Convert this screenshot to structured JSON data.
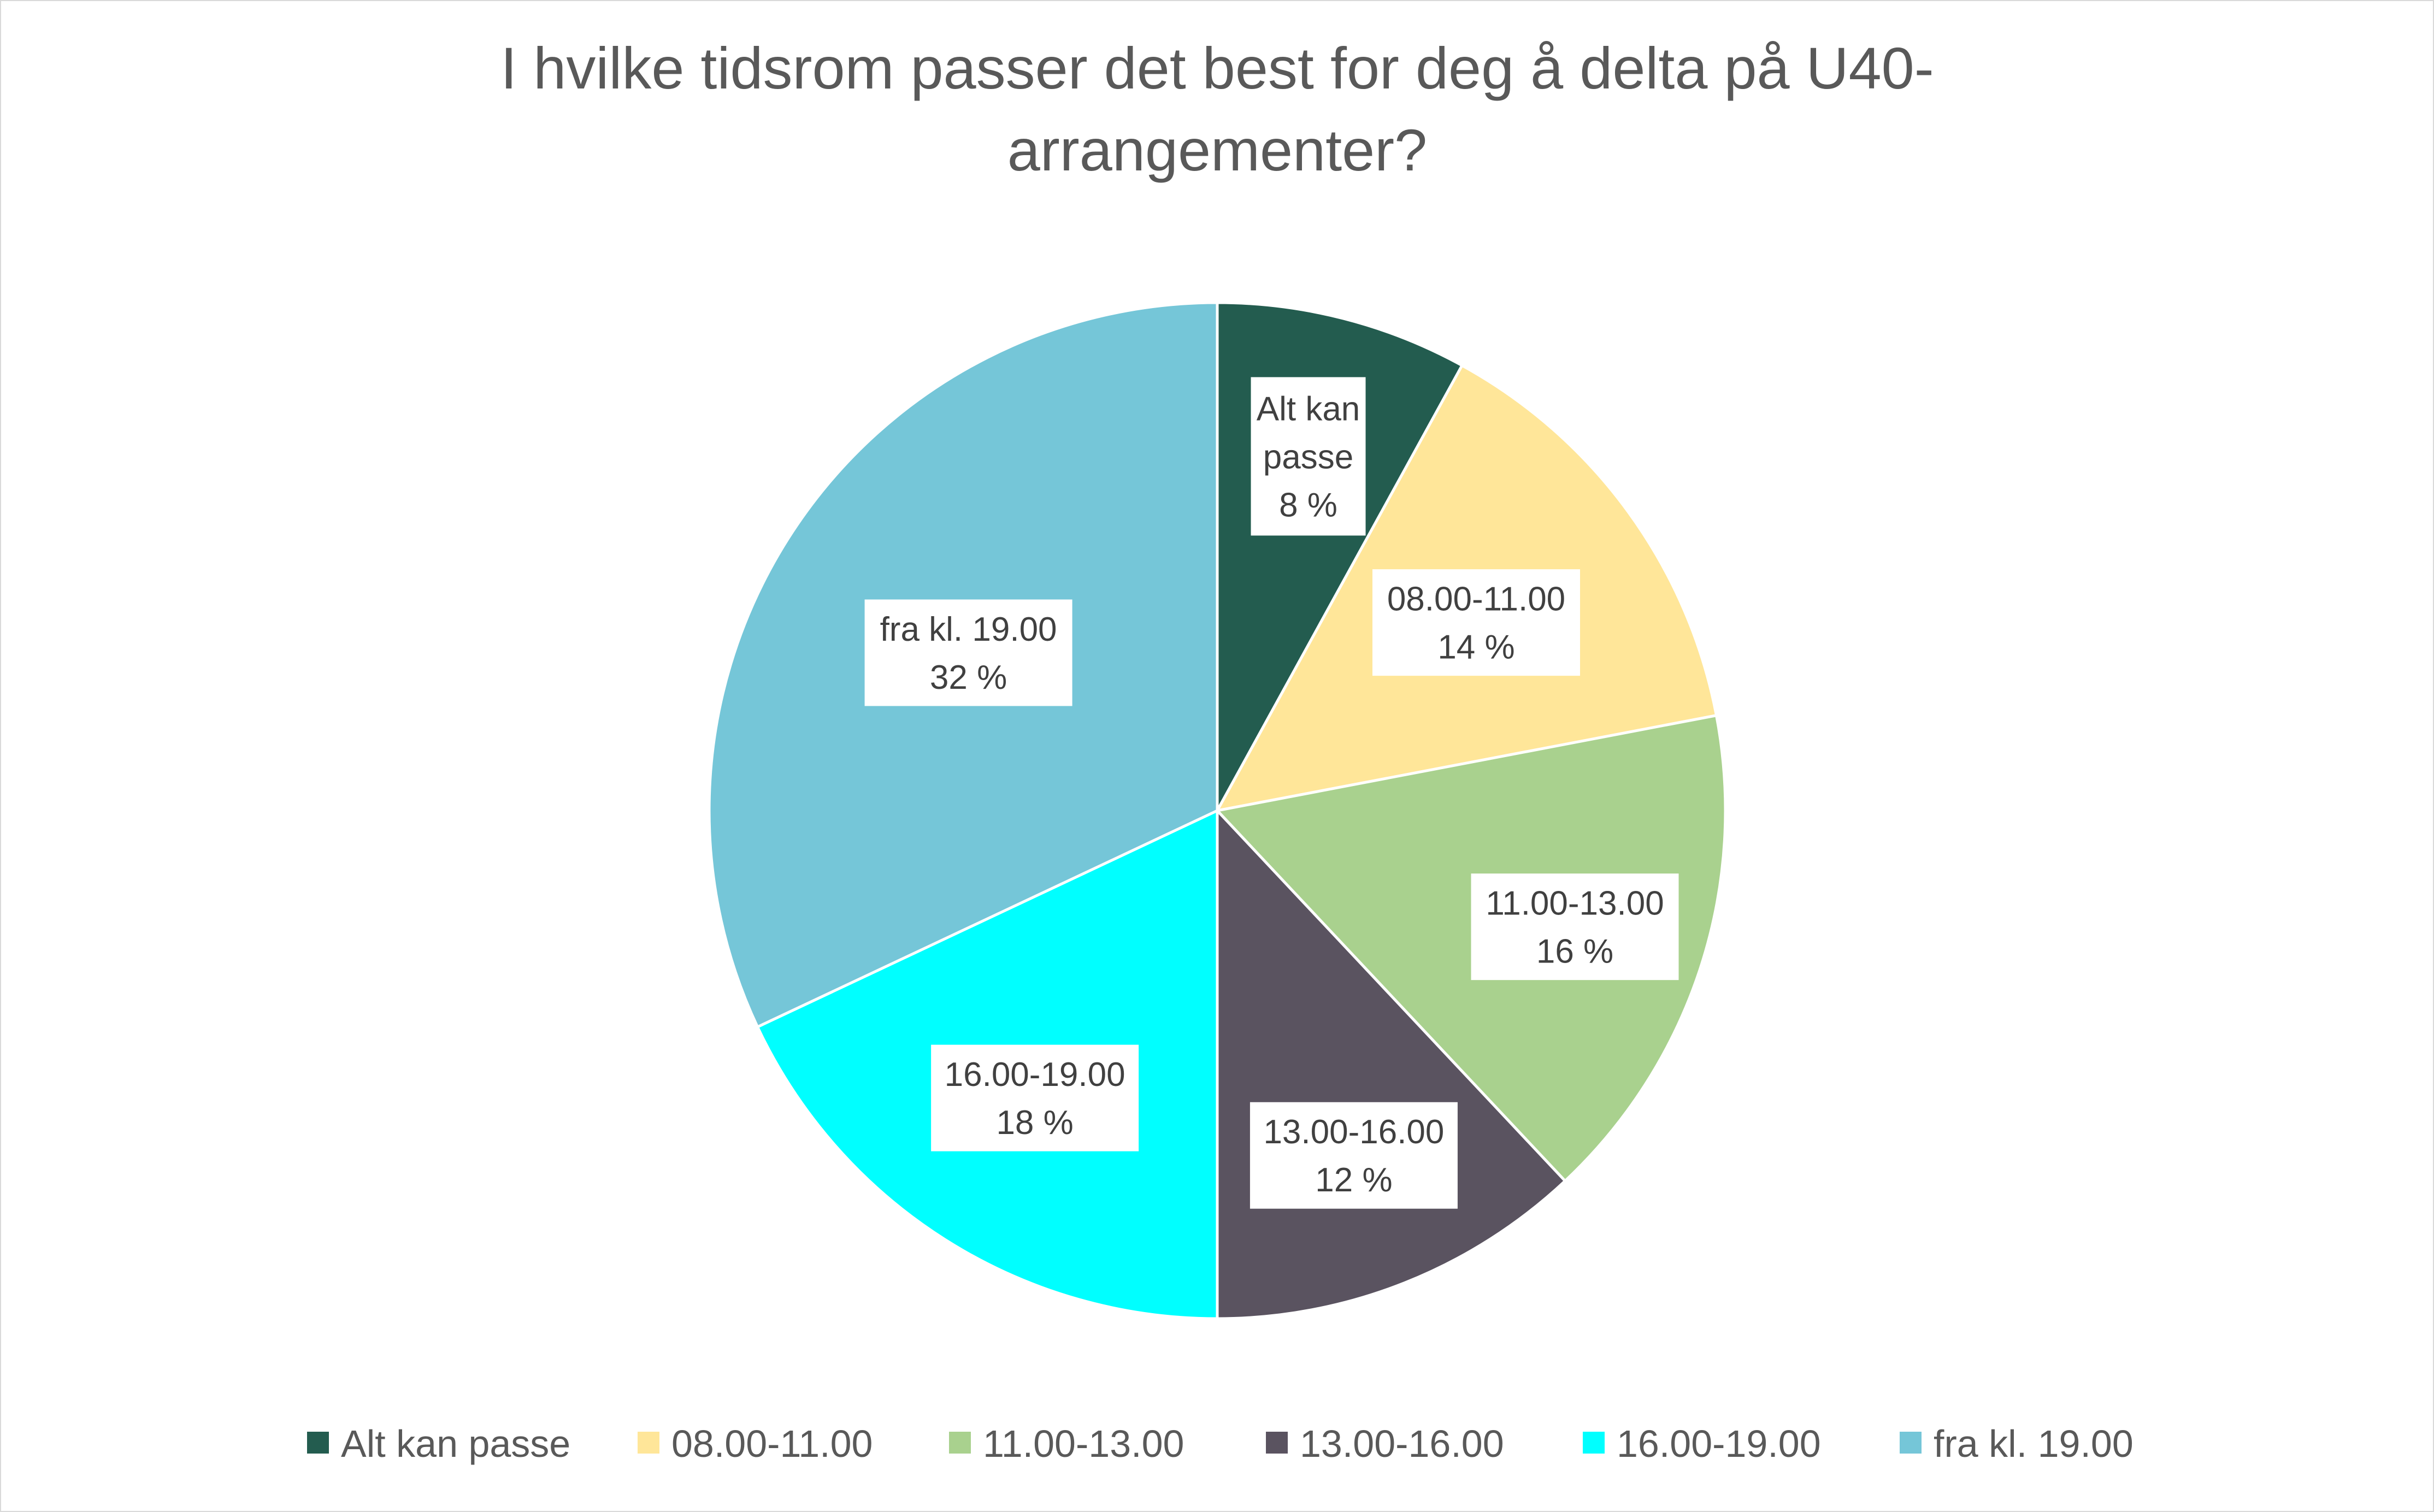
{
  "chart_data": {
    "type": "pie",
    "title_lines": [
      "I hvilke tidsrom passer det best for deg å delta på U40-",
      "arrangementer?"
    ],
    "categories": [
      "Alt kan passe",
      "08.00-11.00",
      "11.00-13.00",
      "13.00-16.00",
      "16.00-19.00",
      "fra kl. 19.00"
    ],
    "values": [
      8,
      14,
      16,
      12,
      18,
      32
    ],
    "value_labels": [
      "8 %",
      "14 %",
      "16 %",
      "12 %",
      "18 %",
      "32 %"
    ],
    "colors": [
      "#235c4f",
      "#ffe699",
      "#a9d18e",
      "#5a5360",
      "#00ffff",
      "#75c6d8"
    ],
    "legend_position": "bottom",
    "data_labels": "category and percentage"
  }
}
